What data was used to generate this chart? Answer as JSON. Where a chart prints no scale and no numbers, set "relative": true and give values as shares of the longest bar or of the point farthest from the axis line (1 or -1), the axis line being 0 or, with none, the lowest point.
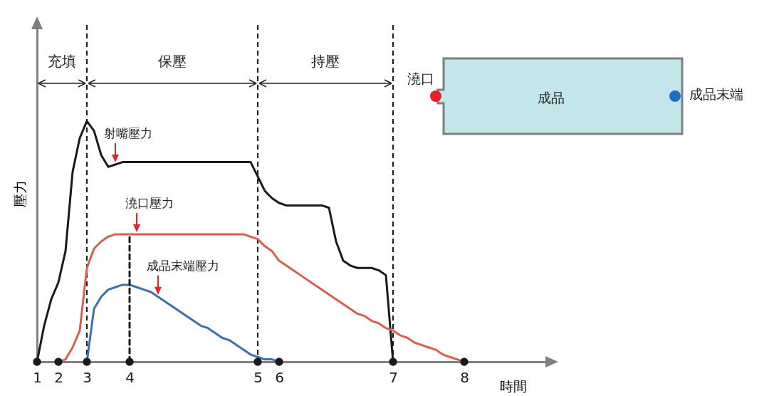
{
  "chart_data": [
    {
      "type": "line",
      "xlabel": "時間",
      "ylabel": "壓力",
      "relative": true,
      "tick_labels": "x",
      "categories": [
        "1",
        null,
        null,
        "2",
        null,
        null,
        null,
        "3",
        null,
        null,
        null,
        null,
        null,
        "4",
        null,
        null,
        null,
        null,
        null,
        null,
        null,
        null,
        null,
        null,
        null,
        null,
        null,
        null,
        null,
        null,
        null,
        "5",
        null,
        null,
        "6",
        null,
        null,
        null,
        null,
        null,
        null,
        null,
        null,
        null,
        null,
        null,
        null,
        null,
        null,
        null,
        "7",
        null,
        null,
        null,
        null,
        null,
        null,
        null,
        null,
        null,
        "8",
        null,
        null,
        null,
        null,
        null,
        null,
        null,
        null,
        null,
        null,
        null,
        null
      ],
      "series": [
        {
          "name": "射嘴壓力",
          "color": "#1a1a1a",
          "values": [
            0,
            0.15,
            0.26,
            0.33,
            0.46,
            0.79,
            0.93,
            1,
            0.96,
            0.86,
            0.81,
            0.82,
            0.83,
            0.83,
            0.83,
            0.83,
            0.83,
            0.83,
            0.83,
            0.83,
            0.83,
            0.83,
            0.83,
            0.83,
            0.83,
            0.83,
            0.83,
            0.83,
            0.83,
            0.83,
            0.83,
            0.77,
            0.71,
            0.68,
            0.66,
            0.65,
            0.65,
            0.65,
            0.65,
            0.65,
            0.65,
            0.64,
            0.5,
            0.42,
            0.4,
            0.39,
            0.39,
            0.39,
            0.38,
            0.36,
            0,
            null,
            null,
            null,
            null,
            null,
            null,
            null,
            null,
            null,
            null,
            null,
            null,
            null,
            null,
            null,
            null,
            null,
            null,
            null,
            null,
            null,
            null
          ]
        },
        {
          "name": "澆口壓力",
          "color": "#d6604f",
          "values": [
            null,
            null,
            null,
            0,
            0.01,
            0.06,
            0.13,
            0.39,
            0.47,
            0.5,
            0.52,
            0.53,
            0.53,
            0.53,
            0.53,
            0.53,
            0.53,
            0.53,
            0.53,
            0.53,
            0.53,
            0.53,
            0.53,
            0.53,
            0.53,
            0.53,
            0.53,
            0.53,
            0.53,
            0.53,
            0.52,
            0.51,
            0.48,
            0.46,
            0.42,
            0.4,
            0.38,
            0.36,
            0.34,
            0.32,
            0.3,
            0.28,
            0.26,
            0.24,
            0.22,
            0.2,
            0.19,
            0.17,
            0.16,
            0.14,
            0.13,
            0.11,
            0.1,
            0.08,
            0.07,
            0.06,
            0.05,
            0.03,
            0.02,
            0.01,
            0,
            null,
            null,
            null,
            null,
            null,
            null,
            null,
            null,
            null,
            null,
            null,
            null
          ]
        },
        {
          "name": "成品末端壓力",
          "color": "#3d6fae",
          "values": [
            null,
            null,
            null,
            null,
            null,
            null,
            null,
            0,
            0.22,
            0.27,
            0.3,
            0.31,
            0.32,
            0.32,
            0.31,
            0.3,
            0.29,
            0.27,
            0.25,
            0.23,
            0.21,
            0.19,
            0.17,
            0.15,
            0.14,
            0.12,
            0.1,
            0.09,
            0.07,
            0.05,
            0.03,
            0.02,
            0.01,
            0.01,
            0,
            null,
            null,
            null,
            null,
            null,
            null,
            null,
            null,
            null,
            null,
            null,
            null,
            null,
            null,
            null,
            null,
            null,
            null,
            null,
            null,
            null,
            null,
            null,
            null,
            null,
            null,
            null,
            null,
            null,
            null,
            null,
            null,
            null,
            null,
            null,
            null,
            null,
            null
          ]
        },
        {
          "type": "line",
          "line_style": "dashed",
          "color": "#1a1a1a",
          "x": [
            "4",
            "4"
          ],
          "values": [
            0,
            0.53
          ]
        },
        {
          "type": "scatter",
          "marker": "circle",
          "color": "#1a1a1a",
          "x": [
            "1",
            "2",
            "3",
            "4",
            "5",
            "6",
            "7",
            "8"
          ],
          "values": [
            0,
            0,
            0,
            0,
            0,
            0,
            0,
            0
          ]
        }
      ],
      "ref_lines": [
        {
          "axis": "x",
          "value": "3",
          "line_style": "dashed",
          "color": "#1a1a1a"
        },
        {
          "axis": "x",
          "value": "5",
          "line_style": "dashed",
          "color": "#1a1a1a"
        },
        {
          "axis": "x",
          "value": "7",
          "line_style": "dashed",
          "color": "#1a1a1a"
        }
      ],
      "annotations": [
        "充填",
        "保壓",
        "持壓"
      ]
    },
    {
      "type": "other",
      "annotations": [
        "澆口",
        "成品",
        "成品末端"
      ]
    }
  ]
}
